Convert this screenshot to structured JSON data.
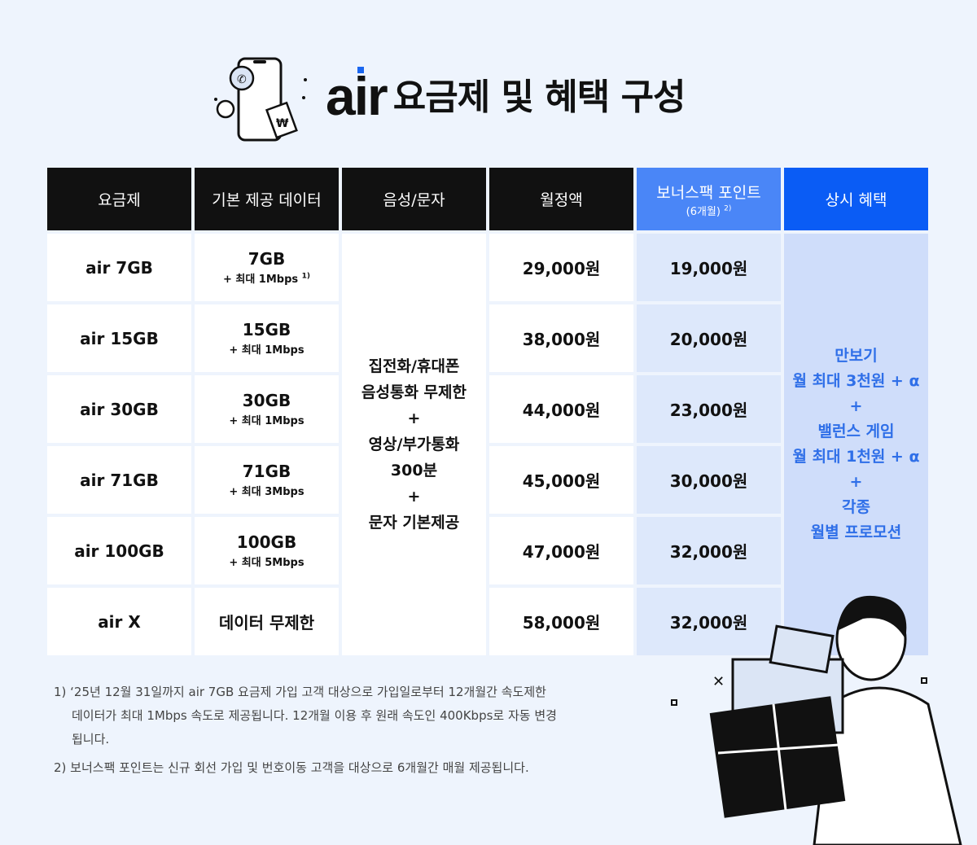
{
  "title": {
    "logo": "air",
    "text": "요금제 및 혜택 구성"
  },
  "table": {
    "headers": [
      "요금제",
      "기본 제공 데이터",
      "음성/문자",
      "월정액"
    ],
    "bonus_header": "보너스팩 포인트",
    "bonus_sub": "(6개월)",
    "bonus_note": "2)",
    "benefit_header": "상시 혜택",
    "rows": [
      {
        "plan": "air 7GB",
        "data": "7GB",
        "speed": "+ 최대 1Mbps",
        "note": "1)",
        "price": "29,000원",
        "bonus": "19,000원"
      },
      {
        "plan": "air 15GB",
        "data": "15GB",
        "speed": "+ 최대 1Mbps",
        "price": "38,000원",
        "bonus": "20,000원"
      },
      {
        "plan": "air 30GB",
        "data": "30GB",
        "speed": "+ 최대 1Mbps",
        "price": "44,000원",
        "bonus": "23,000원"
      },
      {
        "plan": "air 71GB",
        "data": "71GB",
        "speed": "+ 최대 3Mbps",
        "price": "45,000원",
        "bonus": "30,000원"
      },
      {
        "plan": "air 100GB",
        "data": "100GB",
        "speed": "+ 최대 5Mbps",
        "price": "47,000원",
        "bonus": "32,000원"
      },
      {
        "plan": "air X",
        "data": "데이터 무제한",
        "price": "58,000원",
        "bonus": "32,000원"
      }
    ],
    "voice": [
      "집전화/휴대폰",
      "음성통화 무제한",
      "+",
      "영상/부가통화",
      "300분",
      "+",
      "문자 기본제공"
    ],
    "benefits": [
      "만보기",
      "월 최대 3천원 + α",
      "+",
      "밸런스 게임",
      "월 최대 1천원 + α",
      "+",
      "각종",
      "월별 프로모션"
    ]
  },
  "notes": [
    "1) ‘25년 12월 31일까지 air 7GB 요금제 가입 고객 대상으로 가입일로부터 12개월간 속도제한 데이터가 최대 1Mbps 속도로 제공됩니다. 12개월 이용 후 원래 속도인 400Kbps로 자동 변경됩니다.",
    "2) 보너스팩 포인트는 신규 회선 가입 및 번호이동 고객을 대상으로 6개월간 매월 제공됩니다."
  ],
  "colors": {
    "background": "#eef4fd",
    "header": "#111111",
    "bonus_header": "#4a86f7",
    "benefit_header": "#0a5cf5",
    "benefit_text": "#2f6fe8"
  }
}
